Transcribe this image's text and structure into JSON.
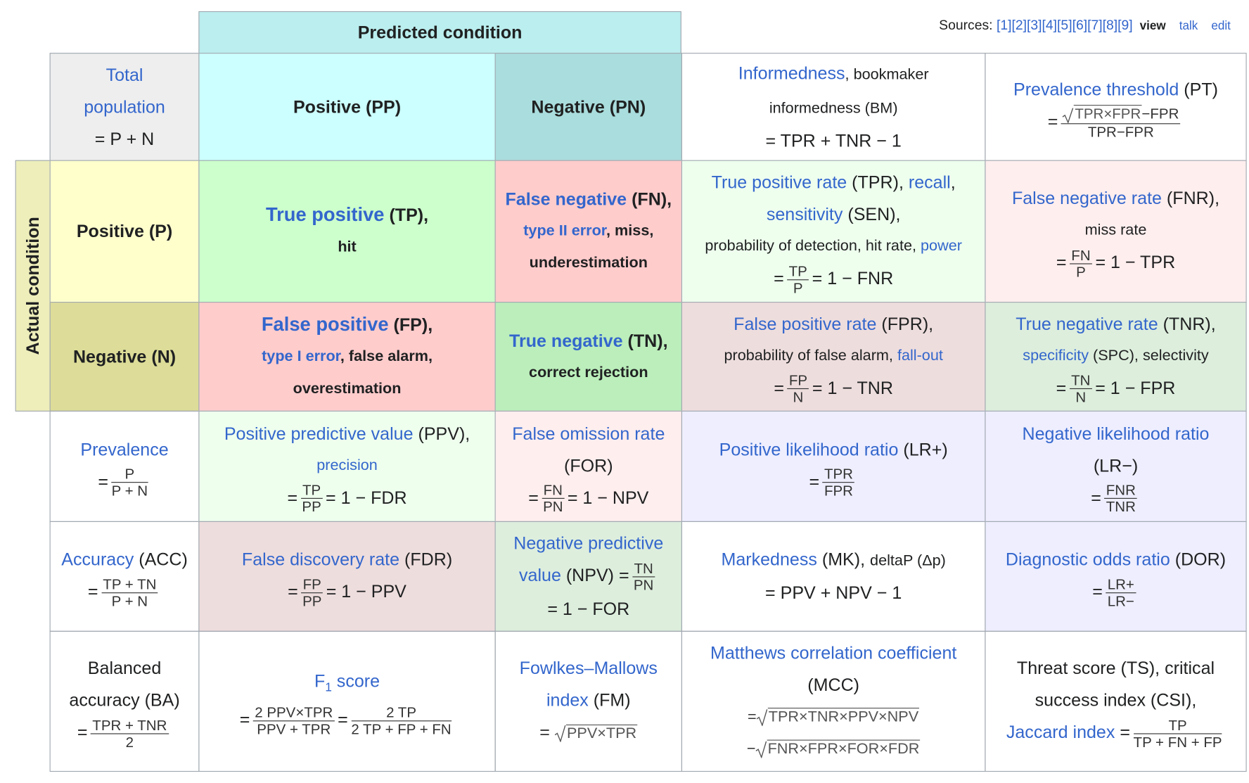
{
  "sources": {
    "label": "Sources:",
    "refs": [
      "[1]",
      "[2]",
      "[3]",
      "[4]",
      "[5]",
      "[6]",
      "[7]",
      "[8]",
      "[9]"
    ],
    "view": "view",
    "talk": "talk",
    "edit": "edit"
  },
  "table": {
    "predicted": "Predicted condition",
    "actual": "Actual condition",
    "rows": [
      [
        [
          "Total population",
          "= P + N"
        ],
        [
          "Positive (PP)"
        ],
        [
          "Negative (PN)"
        ],
        [
          "Informedness",
          ", bookmaker informedness (BM)",
          "= TPR + TNR − 1"
        ],
        [
          "Prevalence threshold",
          " (PT)",
          "=",
          "TPR×FPR",
          "−FPR",
          "TPR−FPR"
        ]
      ],
      [
        [
          "Positive (P)"
        ],
        [
          "True positive",
          " (TP),",
          "hit"
        ],
        [
          "False negative",
          " (FN),",
          "type II error",
          ", miss,",
          "underestimation"
        ],
        [
          "True positive rate",
          " (TPR), ",
          "recall",
          ",",
          "sensitivity",
          " (SEN),",
          "probability of detection, hit rate, ",
          "power",
          "=",
          "TP",
          "P",
          "= 1 − FNR"
        ],
        [
          "False negative rate",
          " (FNR),",
          "miss rate",
          "=",
          "FN",
          "P",
          "= 1 − TPR"
        ]
      ],
      [
        [
          "Negative (N)"
        ],
        [
          "False positive",
          " (FP),",
          "type I error",
          ", false alarm,",
          "overestimation"
        ],
        [
          "True negative",
          " (TN),",
          "correct rejection"
        ],
        [
          "False positive rate",
          " (FPR),",
          "probability of false alarm, ",
          "fall-out",
          "=",
          "FP",
          "N",
          "= 1 − TNR"
        ],
        [
          "True negative rate",
          " (TNR),",
          "specificity",
          " (SPC), selectivity",
          "=",
          "TN",
          "N",
          "= 1 − FPR"
        ]
      ],
      [
        [
          "Prevalence",
          "=",
          "P",
          "P + N"
        ],
        [
          "Positive predictive value",
          " (PPV),",
          "precision",
          "=",
          "TP",
          "PP",
          "= 1 − FDR"
        ],
        [
          "False omission rate",
          "(FOR)",
          "=",
          "FN",
          "PN",
          "= 1 − NPV"
        ],
        [
          "Positive likelihood ratio",
          " (LR+)",
          "=",
          "TPR",
          "FPR"
        ],
        [
          "Negative likelihood ratio",
          "(LR−)",
          "=",
          "FNR",
          "TNR"
        ]
      ],
      [
        [
          "Accuracy",
          " (ACC)",
          "=",
          "TP + TN",
          "P + N"
        ],
        [
          "False discovery rate",
          " (FDR)",
          "=",
          "FP",
          "PP",
          "= 1 − PPV"
        ],
        [
          "Negative predictive value",
          " (NPV) =",
          "TN",
          "PN",
          "= 1 − FOR"
        ],
        [
          "Markedness",
          " (MK), ",
          "deltaP (Δp)",
          "= PPV + NPV − 1"
        ],
        [
          "Diagnostic odds ratio",
          " (DOR)",
          "=",
          "LR+",
          "LR−"
        ]
      ],
      [
        [
          "Balanced accuracy (BA)",
          "=",
          "TPR + TNR",
          "2"
        ],
        [
          "F",
          "1",
          " score",
          "=",
          "2 PPV×TPR",
          "PPV + TPR",
          "=",
          "2 TP",
          "2 TP + FP + FN"
        ],
        [
          "Fowlkes–Mallows index",
          " (FM)",
          "=",
          "PPV×TPR"
        ],
        [
          "Matthews correlation coefficient",
          "(MCC)",
          "=",
          "TPR×TNR×PPV×NPV",
          "−",
          "FNR×FPR×FOR×FDR"
        ],
        [
          "Threat score (TS), critical success index (CSI),",
          "Jaccard index",
          " =",
          "TP",
          "TP + FN + FP"
        ]
      ]
    ]
  }
}
